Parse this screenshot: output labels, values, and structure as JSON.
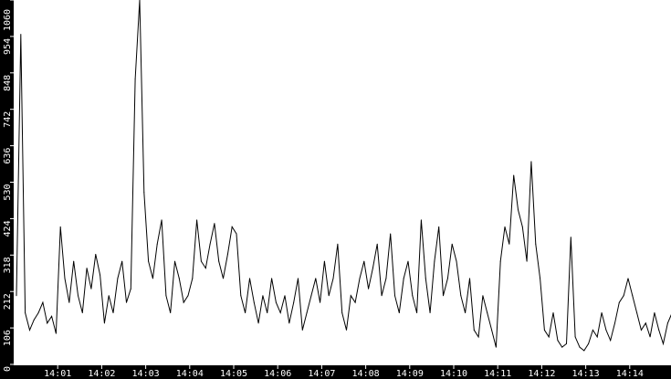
{
  "chart_data": {
    "type": "line",
    "title": "",
    "xlabel": "",
    "ylabel": "",
    "ylim": [
      0,
      1060
    ],
    "yticks": [
      0,
      106,
      212,
      318,
      424,
      530,
      636,
      742,
      848,
      954,
      1060
    ],
    "xticks": [
      "14:01",
      "14:02",
      "14:03",
      "14:04",
      "14:05",
      "14:06",
      "14:07",
      "14:08",
      "14:09",
      "14:10",
      "14:11",
      "14:12",
      "14:13",
      "14:14"
    ],
    "x_start": "14:00:00",
    "x_step_seconds": 6,
    "grid": false,
    "colors": {
      "line": "#000000",
      "plot_bg": "#ffffff",
      "axis_bg": "#000000",
      "axis_text": "#ffffff"
    },
    "series": [
      {
        "values": [
          200,
          960,
          150,
          100,
          130,
          150,
          180,
          120,
          140,
          90,
          400,
          250,
          180,
          300,
          200,
          150,
          280,
          220,
          320,
          260,
          120,
          200,
          150,
          250,
          300,
          180,
          220,
          830,
          1060,
          500,
          300,
          250,
          350,
          420,
          200,
          150,
          300,
          250,
          180,
          200,
          250,
          420,
          300,
          280,
          350,
          410,
          300,
          250,
          320,
          400,
          380,
          200,
          150,
          250,
          180,
          120,
          200,
          150,
          250,
          180,
          150,
          200,
          120,
          180,
          250,
          100,
          150,
          200,
          250,
          180,
          300,
          200,
          250,
          350,
          150,
          100,
          200,
          180,
          250,
          300,
          220,
          280,
          350,
          200,
          250,
          380,
          200,
          150,
          250,
          300,
          200,
          150,
          420,
          250,
          150,
          300,
          400,
          200,
          250,
          350,
          300,
          200,
          150,
          250,
          100,
          80,
          200,
          150,
          100,
          50,
          300,
          400,
          350,
          550,
          450,
          400,
          300,
          590,
          350,
          250,
          100,
          80,
          150,
          70,
          50,
          60,
          370,
          80,
          50,
          40,
          60,
          100,
          80,
          150,
          100,
          70,
          120,
          180,
          200,
          250,
          200,
          150,
          100,
          120,
          80,
          150,
          100,
          60,
          120,
          150
        ]
      }
    ]
  }
}
